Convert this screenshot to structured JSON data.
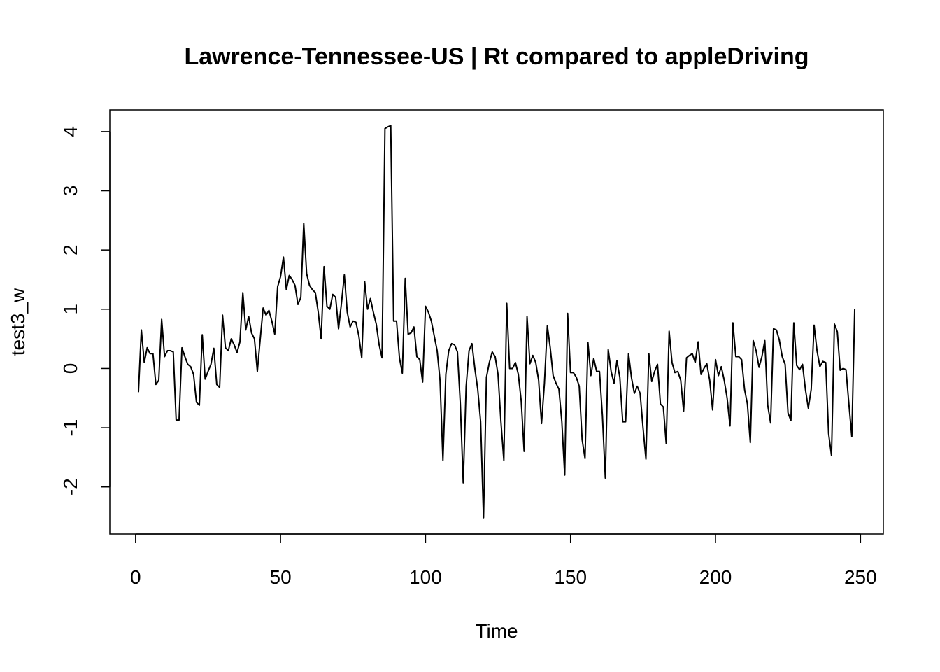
{
  "chart_data": {
    "type": "line",
    "title": "Lawrence-Tennessee-US | Rt compared to appleDriving",
    "x_label": "Time",
    "y_label": "test3_w",
    "color": "#000000",
    "x": [
      1,
      2,
      3,
      4,
      5,
      6,
      7,
      8,
      9,
      10,
      11,
      12,
      13,
      14,
      15,
      16,
      17,
      18,
      19,
      20,
      21,
      22,
      23,
      24,
      25,
      26,
      27,
      28,
      29,
      30,
      31,
      32,
      33,
      34,
      35,
      36,
      37,
      38,
      39,
      40,
      41,
      42,
      43,
      44,
      45,
      46,
      47,
      48,
      49,
      50,
      51,
      52,
      53,
      54,
      55,
      56,
      57,
      58,
      59,
      60,
      61,
      62,
      63,
      64,
      65,
      66,
      67,
      68,
      69,
      70,
      71,
      72,
      73,
      74,
      75,
      76,
      77,
      78,
      79,
      80,
      81,
      82,
      83,
      84,
      85,
      86,
      87,
      88,
      89,
      90,
      91,
      92,
      93,
      94,
      95,
      96,
      97,
      98,
      99,
      100,
      101,
      102,
      103,
      104,
      105,
      106,
      107,
      108,
      109,
      110,
      111,
      112,
      113,
      114,
      115,
      116,
      117,
      118,
      119,
      120,
      121,
      122,
      123,
      124,
      125,
      126,
      127,
      128,
      129,
      130,
      131,
      132,
      133,
      134,
      135,
      136,
      137,
      138,
      139,
      140,
      141,
      142,
      143,
      144,
      145,
      146,
      147,
      148,
      149,
      150,
      151,
      152,
      153,
      154,
      155,
      156,
      157,
      158,
      159,
      160,
      161,
      162,
      163,
      164,
      165,
      166,
      167,
      168,
      169,
      170,
      171,
      172,
      173,
      174,
      175,
      176,
      177,
      178,
      179,
      180,
      181,
      182,
      183,
      184,
      185,
      186,
      187,
      188,
      189,
      190,
      191,
      192,
      193,
      194,
      195,
      196,
      197,
      198,
      199,
      200,
      201,
      202,
      203,
      204,
      205,
      206,
      207,
      208,
      209,
      210,
      211,
      212,
      213,
      214,
      215,
      216,
      217,
      218,
      219,
      220,
      221,
      222,
      223,
      224,
      225,
      226,
      227,
      228,
      229,
      230,
      231,
      232,
      233,
      234,
      235,
      236,
      237,
      238,
      239,
      240,
      241,
      242,
      243,
      244,
      245,
      246,
      247,
      248
    ],
    "values": [
      -0.4,
      0.65,
      0.1,
      0.35,
      0.25,
      0.25,
      -0.27,
      -0.2,
      0.83,
      0.2,
      0.3,
      0.3,
      0.28,
      -0.87,
      -0.87,
      0.35,
      0.2,
      0.07,
      0.03,
      -0.1,
      -0.57,
      -0.62,
      0.57,
      -0.18,
      -0.05,
      0.07,
      0.34,
      -0.27,
      -0.32,
      0.9,
      0.35,
      0.3,
      0.5,
      0.4,
      0.27,
      0.45,
      1.28,
      0.65,
      0.88,
      0.6,
      0.5,
      -0.05,
      0.5,
      1.02,
      0.9,
      0.98,
      0.8,
      0.58,
      1.38,
      1.55,
      1.88,
      1.33,
      1.57,
      1.5,
      1.4,
      1.08,
      1.2,
      2.45,
      1.6,
      1.4,
      1.33,
      1.28,
      0.95,
      0.5,
      1.72,
      1.05,
      1.0,
      1.25,
      1.2,
      0.67,
      1.1,
      1.58,
      0.95,
      0.7,
      0.8,
      0.78,
      0.55,
      0.18,
      1.47,
      1.0,
      1.18,
      0.95,
      0.75,
      0.4,
      0.18,
      4.05,
      4.08,
      4.1,
      0.8,
      0.8,
      0.18,
      -0.08,
      1.52,
      0.58,
      0.6,
      0.7,
      0.2,
      0.15,
      -0.23,
      1.05,
      0.95,
      0.8,
      0.55,
      0.3,
      -0.2,
      -1.55,
      -0.1,
      0.3,
      0.42,
      0.4,
      0.28,
      -0.6,
      -1.93,
      -0.3,
      0.3,
      0.42,
      0,
      -0.35,
      -0.9,
      -2.52,
      -0.15,
      0.1,
      0.28,
      0.2,
      -0.1,
      -0.9,
      -1.55,
      1.1,
      0,
      0,
      0.1,
      -0.1,
      -0.55,
      -1.4,
      0.88,
      0.08,
      0.22,
      0.1,
      -0.2,
      -0.93,
      -0.25,
      0.72,
      0.35,
      -0.12,
      -0.25,
      -0.35,
      -0.9,
      -1.8,
      0.93,
      -0.07,
      -0.07,
      -0.15,
      -0.3,
      -1.2,
      -1.52,
      0.44,
      -0.12,
      0.17,
      -0.05,
      -0.05,
      -0.8,
      -1.85,
      0.32,
      -0.05,
      -0.25,
      0.13,
      -0.15,
      -0.9,
      -0.9,
      0.25,
      -0.15,
      -0.42,
      -0.3,
      -0.42,
      -1.0,
      -1.53,
      0.25,
      -0.22,
      -0.05,
      0.07,
      -0.6,
      -0.65,
      -1.27,
      0.63,
      0.1,
      -0.07,
      -0.05,
      -0.2,
      -0.72,
      0.18,
      0.22,
      0.25,
      0.1,
      0.45,
      -0.1,
      0,
      0.08,
      -0.2,
      -0.7,
      0.15,
      -0.12,
      0.03,
      -0.2,
      -0.5,
      -0.97,
      0.77,
      0.2,
      0.2,
      0.15,
      -0.35,
      -0.6,
      -1.25,
      0.47,
      0.3,
      0.02,
      0.2,
      0.47,
      -0.62,
      -0.92,
      0.67,
      0.65,
      0.48,
      0.2,
      0.07,
      -0.75,
      -0.88,
      0.77,
      0.05,
      -0.02,
      0.07,
      -0.35,
      -0.67,
      -0.35,
      0.73,
      0.3,
      0.03,
      0.12,
      0.1,
      -1.1,
      -1.47,
      0.75,
      0.62,
      -0.03,
      0,
      -0.02,
      -0.6,
      -1.15,
      1.0
    ],
    "xlim": [
      -8.88,
      257.88
    ],
    "ylim": [
      -2.795,
      4.365
    ],
    "xticks": [
      0,
      50,
      100,
      150,
      200,
      250
    ],
    "yticks": [
      -2,
      -1,
      0,
      1,
      2,
      3,
      4
    ]
  }
}
